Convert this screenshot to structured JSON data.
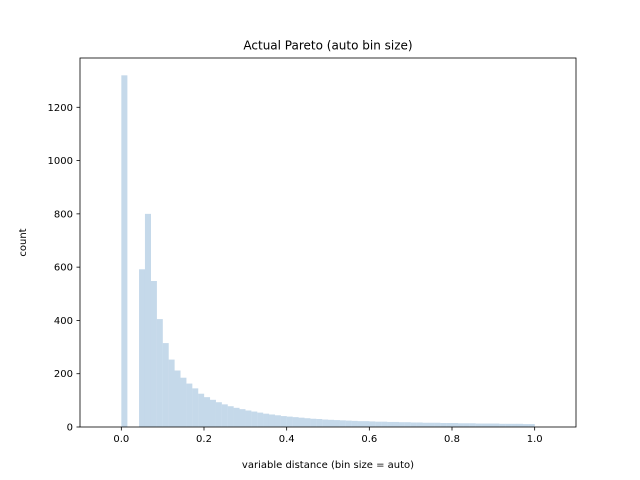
{
  "chart_data": {
    "type": "bar",
    "title": "Actual Pareto (auto bin size)",
    "xlabel": "variable distance (bin size = auto)",
    "ylabel": "count",
    "xlim": [
      -0.1,
      1.1
    ],
    "ylim": [
      0,
      1385
    ],
    "xticks": [
      0.0,
      0.2,
      0.4,
      0.6,
      0.8,
      1.0
    ],
    "xtick_labels": [
      "0.0",
      "0.2",
      "0.4",
      "0.6",
      "0.8",
      "1.0"
    ],
    "yticks": [
      0,
      200,
      400,
      600,
      800,
      1000,
      1200
    ],
    "ytick_labels": [
      "0",
      "200",
      "400",
      "600",
      "800",
      "1000",
      "1200"
    ],
    "bar_color": "#c5d9ea",
    "grid": false,
    "legend": "none",
    "series": [
      {
        "bin_edges": [
          0.0,
          0.014286,
          0.028571,
          0.042857,
          0.057143,
          0.071429,
          0.085714,
          0.1,
          0.114286,
          0.128571,
          0.142857,
          0.157143,
          0.171429,
          0.185714,
          0.2,
          0.214286,
          0.228571,
          0.242857,
          0.257143,
          0.271429,
          0.285714,
          0.3,
          0.314286,
          0.328571,
          0.342857,
          0.357143,
          0.371429,
          0.385714,
          0.4,
          0.414286,
          0.428571,
          0.442857,
          0.457143,
          0.471429,
          0.485714,
          0.5,
          0.514286,
          0.528571,
          0.542857,
          0.557143,
          0.571429,
          0.585714,
          0.6,
          0.614286,
          0.628571,
          0.642857,
          0.657143,
          0.671429,
          0.685714,
          0.7,
          0.714286,
          0.728571,
          0.742857,
          0.757143,
          0.771429,
          0.785714,
          0.8,
          0.814286,
          0.828571,
          0.842857,
          0.857143,
          0.871429,
          0.885714,
          0.9,
          0.914286,
          0.928571,
          0.942857,
          0.957143,
          0.971429,
          0.985714,
          1.0
        ],
        "counts": [
          1320,
          0,
          0,
          592,
          800,
          548,
          405,
          315,
          253,
          212,
          185,
          163,
          145,
          125,
          112,
          102,
          93,
          85,
          78,
          72,
          67,
          62,
          58,
          54,
          50,
          47,
          44,
          41,
          39,
          37,
          35,
          33,
          31,
          30,
          28,
          27,
          26,
          25,
          24,
          23,
          22,
          22,
          21,
          20,
          20,
          19,
          19,
          18,
          18,
          17,
          17,
          16,
          16,
          16,
          15,
          15,
          15,
          14,
          14,
          14,
          13,
          13,
          13,
          13,
          12,
          12,
          12,
          12,
          11,
          11
        ]
      }
    ]
  }
}
